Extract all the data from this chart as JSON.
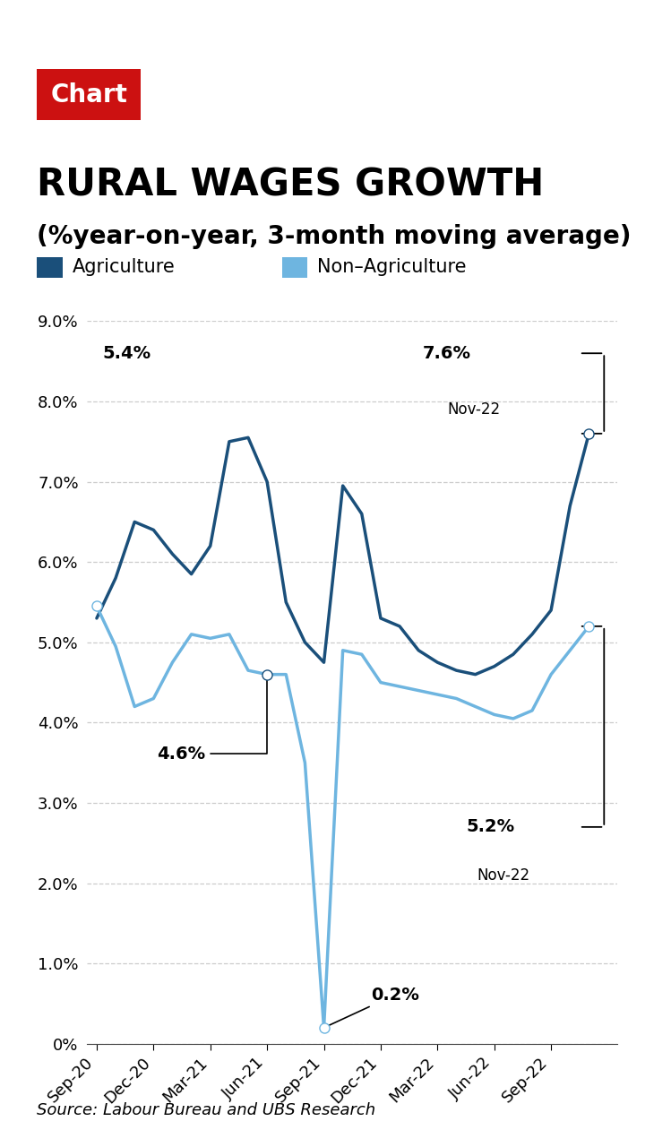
{
  "title_label": "Chart",
  "title_main": "RURAL WAGES GROWTH",
  "title_sub": "(%year-on-year, 3-month moving average)",
  "source": "Source: Labour Bureau and UBS Research",
  "agri_color": "#1a4f7a",
  "non_agri_color": "#6eb5e0",
  "background_color": "#ffffff",
  "grid_color": "#cccccc",
  "agri_x": [
    0,
    1,
    2,
    3,
    4,
    5,
    6,
    7,
    8,
    9,
    10,
    11,
    12,
    13,
    14,
    15,
    16,
    17,
    18,
    19,
    20,
    21,
    22,
    23,
    24,
    25,
    26
  ],
  "agri_y": [
    5.3,
    5.8,
    6.5,
    6.4,
    6.1,
    5.85,
    6.2,
    7.5,
    7.55,
    7.0,
    5.5,
    5.0,
    4.75,
    6.95,
    6.6,
    5.3,
    5.2,
    4.9,
    4.75,
    4.65,
    4.6,
    4.7,
    4.85,
    5.1,
    5.4,
    6.7,
    7.6
  ],
  "non_agri_x": [
    0,
    1,
    2,
    3,
    4,
    5,
    6,
    7,
    8,
    9,
    10,
    11,
    12,
    13,
    14,
    15,
    16,
    17,
    18,
    19,
    20,
    21,
    22,
    23,
    24,
    25,
    26
  ],
  "non_agri_y": [
    5.45,
    4.95,
    4.2,
    4.3,
    4.75,
    5.1,
    5.05,
    5.1,
    4.65,
    4.6,
    4.6,
    3.5,
    0.2,
    4.9,
    4.85,
    4.5,
    4.45,
    4.4,
    4.35,
    4.3,
    4.2,
    4.1,
    4.05,
    4.15,
    4.6,
    4.9,
    5.2
  ],
  "tick_positions": [
    0,
    3,
    6,
    9,
    12,
    15,
    18,
    21,
    24
  ],
  "tick_labels": [
    "Sep-20",
    "Dec-20",
    "Mar-21",
    "Jun-21",
    "Sep-21",
    "Dec-21",
    "Mar-22",
    "Jun-22",
    "Sep-22"
  ],
  "xlim": [
    -0.5,
    27.5
  ],
  "ylim": [
    0,
    9.0
  ],
  "ytick_vals": [
    0,
    1.0,
    2.0,
    3.0,
    4.0,
    5.0,
    6.0,
    7.0,
    8.0,
    9.0
  ],
  "ytick_labels": [
    "0%",
    "1.0%",
    "2.0%",
    "3.0%",
    "4.0%",
    "5.0%",
    "6.0%",
    "7.0%",
    "8.0%",
    "9.0%"
  ]
}
